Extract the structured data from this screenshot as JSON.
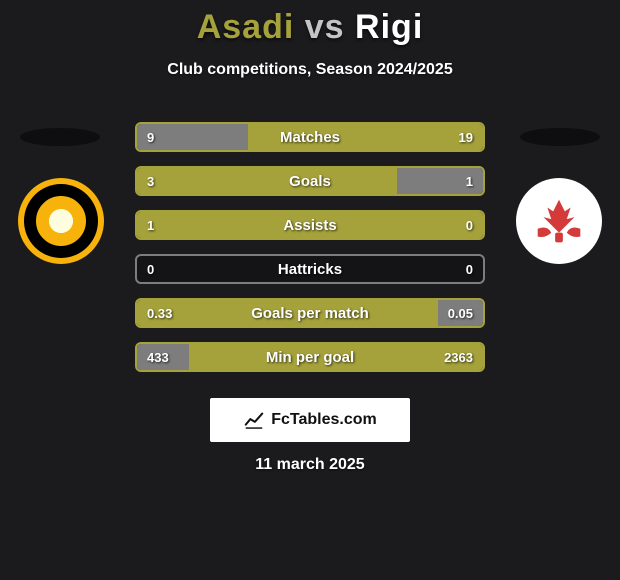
{
  "title_left": "Asadi",
  "title_vs": "vs",
  "title_right": "Rigi",
  "subtitle": "Club competitions, Season 2024/2025",
  "date": "11 march 2025",
  "footer_label": "FcTables.com",
  "colors": {
    "title_left": "#a5a23b",
    "title_vs": "#c4c4c7",
    "title_right": "#ffffff",
    "bar_primary": "#a5a23b",
    "bar_secondary": "#7d7d7e",
    "bar_border": "#a5a23b",
    "bar_border_neutral": "#7d7d7e"
  },
  "rows": [
    {
      "label": "Matches",
      "left": "9",
      "right": "19",
      "left_pct": 32,
      "right_pct": 68,
      "highlight": "right"
    },
    {
      "label": "Goals",
      "left": "3",
      "right": "1",
      "left_pct": 75,
      "right_pct": 25,
      "highlight": "left"
    },
    {
      "label": "Assists",
      "left": "1",
      "right": "0",
      "left_pct": 100,
      "right_pct": 0,
      "highlight": "left"
    },
    {
      "label": "Hattricks",
      "left": "0",
      "right": "0",
      "left_pct": 0,
      "right_pct": 0,
      "highlight": "none"
    },
    {
      "label": "Goals per match",
      "left": "0.33",
      "right": "0.05",
      "left_pct": 87,
      "right_pct": 13,
      "highlight": "left"
    },
    {
      "label": "Min per goal",
      "left": "433",
      "right": "2363",
      "left_pct": 15,
      "right_pct": 85,
      "highlight": "right"
    }
  ]
}
